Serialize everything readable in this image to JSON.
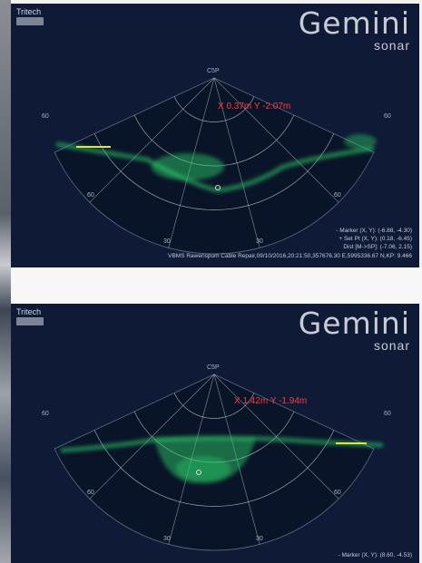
{
  "panels": [
    {
      "brand": {
        "company": "Tritech",
        "product": "Gemini",
        "product_sub": "sonar"
      },
      "cursor_readout": "X 0.37m Y -2.07m",
      "range_top_label": "C5P",
      "bearing_labels": {
        "left_top": "60",
        "right_top": "60",
        "left_mid": "60",
        "right_mid": "60",
        "bottom_left": "30",
        "bottom_right": "30"
      },
      "info_lines": [
        "- Marker (X, Y): (-6.88, -4.30)",
        "+ Set Pt (X, Y): (0.18, -6.45)",
        "Dist [M->SP]: (-7.06, 2.15)",
        "VBMS Rawenspum Cable Repair,09/10/2016,20:21:50,357676.30 E,5995336.67 N,KP: 9.466"
      ]
    },
    {
      "brand": {
        "company": "Tritech",
        "product": "Gemini",
        "product_sub": "sonar"
      },
      "cursor_readout": "X 1.42m Y -1.94m",
      "range_top_label": "C5P",
      "bearing_labels": {
        "left_top": "60",
        "right_top": "60",
        "left_mid": "60",
        "right_mid": "60",
        "bottom_left": "30",
        "bottom_right": "30"
      },
      "info_lines": [
        "- Marker (X, Y): (8.60, -4.53)"
      ]
    }
  ],
  "colors": {
    "background": "#0e1a36",
    "echo": "#2fd86b",
    "marker": "#e6e63a",
    "readout": "#ff3b3b"
  }
}
